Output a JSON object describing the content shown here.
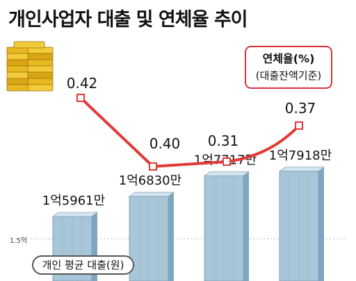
{
  "title": "개인사업자 대출 및 연체율 추이",
  "line_legend": {
    "line1": "연체율(%)",
    "line2": "(대출잔액기준)"
  },
  "bar_legend": "개인 평균 대출(원)",
  "axis_tick": "1.5억",
  "colors": {
    "line": "#e03a36",
    "bar_front": "#a9c6d9",
    "bar_side": "#7ea6c0",
    "bar_top": "#d4e5ef",
    "gridline": "#b0b0b0"
  },
  "icon": "money-stack-icon",
  "chart_data": [
    {
      "type": "bar",
      "categories": [
        "",
        "",
        "",
        ""
      ],
      "series": [
        {
          "name": "개인 평균 대출(원)",
          "values": [
            159610000,
            168300000,
            177170000,
            179180000
          ]
        }
      ],
      "data_labels": [
        "1억5961만",
        "1억6830만",
        "1억7717만",
        "1억7918만"
      ],
      "ylabel": "",
      "reference_line": {
        "value": 150000000,
        "label": "1.5억"
      }
    },
    {
      "type": "line",
      "x": [
        1,
        2,
        3,
        4
      ],
      "series": [
        {
          "name": "연체율(%)",
          "values": [
            0.42,
            0.4,
            0.31,
            0.37
          ]
        }
      ],
      "data_labels": [
        "0.42",
        "0.40",
        "0.31",
        "0.37"
      ],
      "legend": "top-right"
    }
  ]
}
